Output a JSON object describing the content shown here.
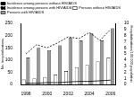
{
  "chart_data": {
    "type": "bar",
    "categories": [
      "1998",
      null,
      "2000",
      null,
      "2002",
      null,
      "2004",
      null,
      "2006"
    ],
    "series": [
      {
        "name": "Persons without HIV/AIDS",
        "type": "bar",
        "color": "#ffffff",
        "values": [
          20,
          25,
          30,
          40,
          55,
          70,
          80,
          95,
          110
        ]
      },
      {
        "name": "Persons with HIV/AIDS",
        "type": "bar",
        "color": "#999999",
        "values": [
          110,
          150,
          140,
          160,
          190,
          180,
          210,
          180,
          230
        ]
      },
      {
        "name": "Incidence among persons without HIV/AIDS",
        "type": "line",
        "axis": "y2",
        "color": "#000000",
        "line_style": "solid",
        "values": [
          0.2,
          0.2,
          0.3,
          0.3,
          0.4,
          0.5,
          0.5,
          0.6,
          0.7
        ]
      },
      {
        "name": "Incidence among persons with HIV/AIDS",
        "type": "line",
        "axis": "y2",
        "color": "#000000",
        "line_style": "dashed",
        "values": [
          5.0,
          6.5,
          6.0,
          6.8,
          7.8,
          7.5,
          8.5,
          7.2,
          9.0
        ]
      }
    ],
    "y_label": "No. hospitalizations",
    "y2_label": "Hospitalizations/100,000 population",
    "ylim": [
      0,
      250
    ],
    "yticks": [
      0,
      50,
      100,
      150,
      200,
      250
    ],
    "y2lim": [
      0,
      10
    ],
    "y2ticks": [
      0,
      1,
      2,
      3,
      4,
      5,
      6,
      7,
      8,
      9,
      10
    ],
    "legend": "top",
    "grid": false
  }
}
